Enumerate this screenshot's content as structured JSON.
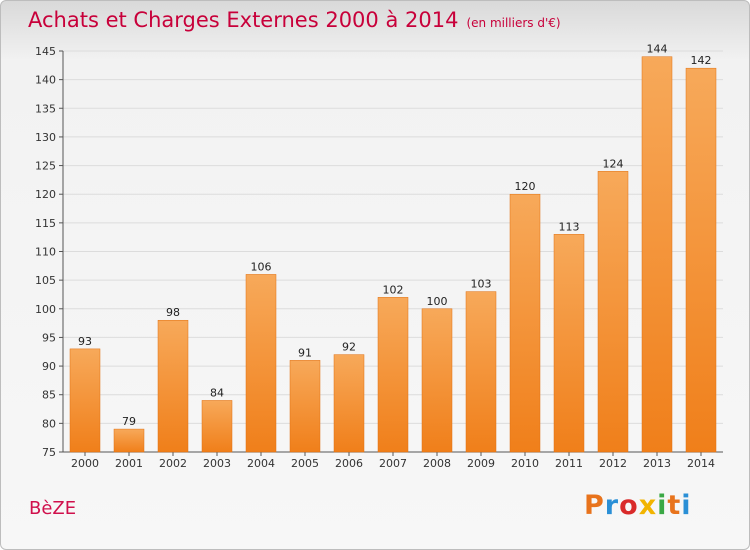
{
  "header": {
    "title": "Achats et Charges Externes 2000 à 2014",
    "subtitle": "(en milliers d'€)"
  },
  "footer": {
    "commune": "BèZE",
    "logo": "Proxiti",
    "logo_colors": [
      "#e8731c",
      "#2a8fd6",
      "#d92a2a",
      "#f2b400",
      "#3aa845",
      "#e8731c",
      "#2a8fd6"
    ]
  },
  "chart_data": {
    "type": "bar",
    "categories": [
      "2000",
      "2001",
      "2002",
      "2003",
      "2004",
      "2005",
      "2006",
      "2007",
      "2008",
      "2009",
      "2010",
      "2011",
      "2012",
      "2013",
      "2014"
    ],
    "values": [
      93,
      79,
      98,
      84,
      106,
      91,
      92,
      102,
      100,
      103,
      120,
      113,
      124,
      144,
      142
    ],
    "ylim": [
      75,
      145
    ],
    "yticks": [
      75,
      80,
      85,
      90,
      95,
      100,
      105,
      110,
      115,
      120,
      125,
      130,
      135,
      140,
      145
    ],
    "grid": true,
    "bar_color": "#f07f1a",
    "bar_color_light": "#f7a95a",
    "xlabel": "",
    "ylabel": ""
  }
}
